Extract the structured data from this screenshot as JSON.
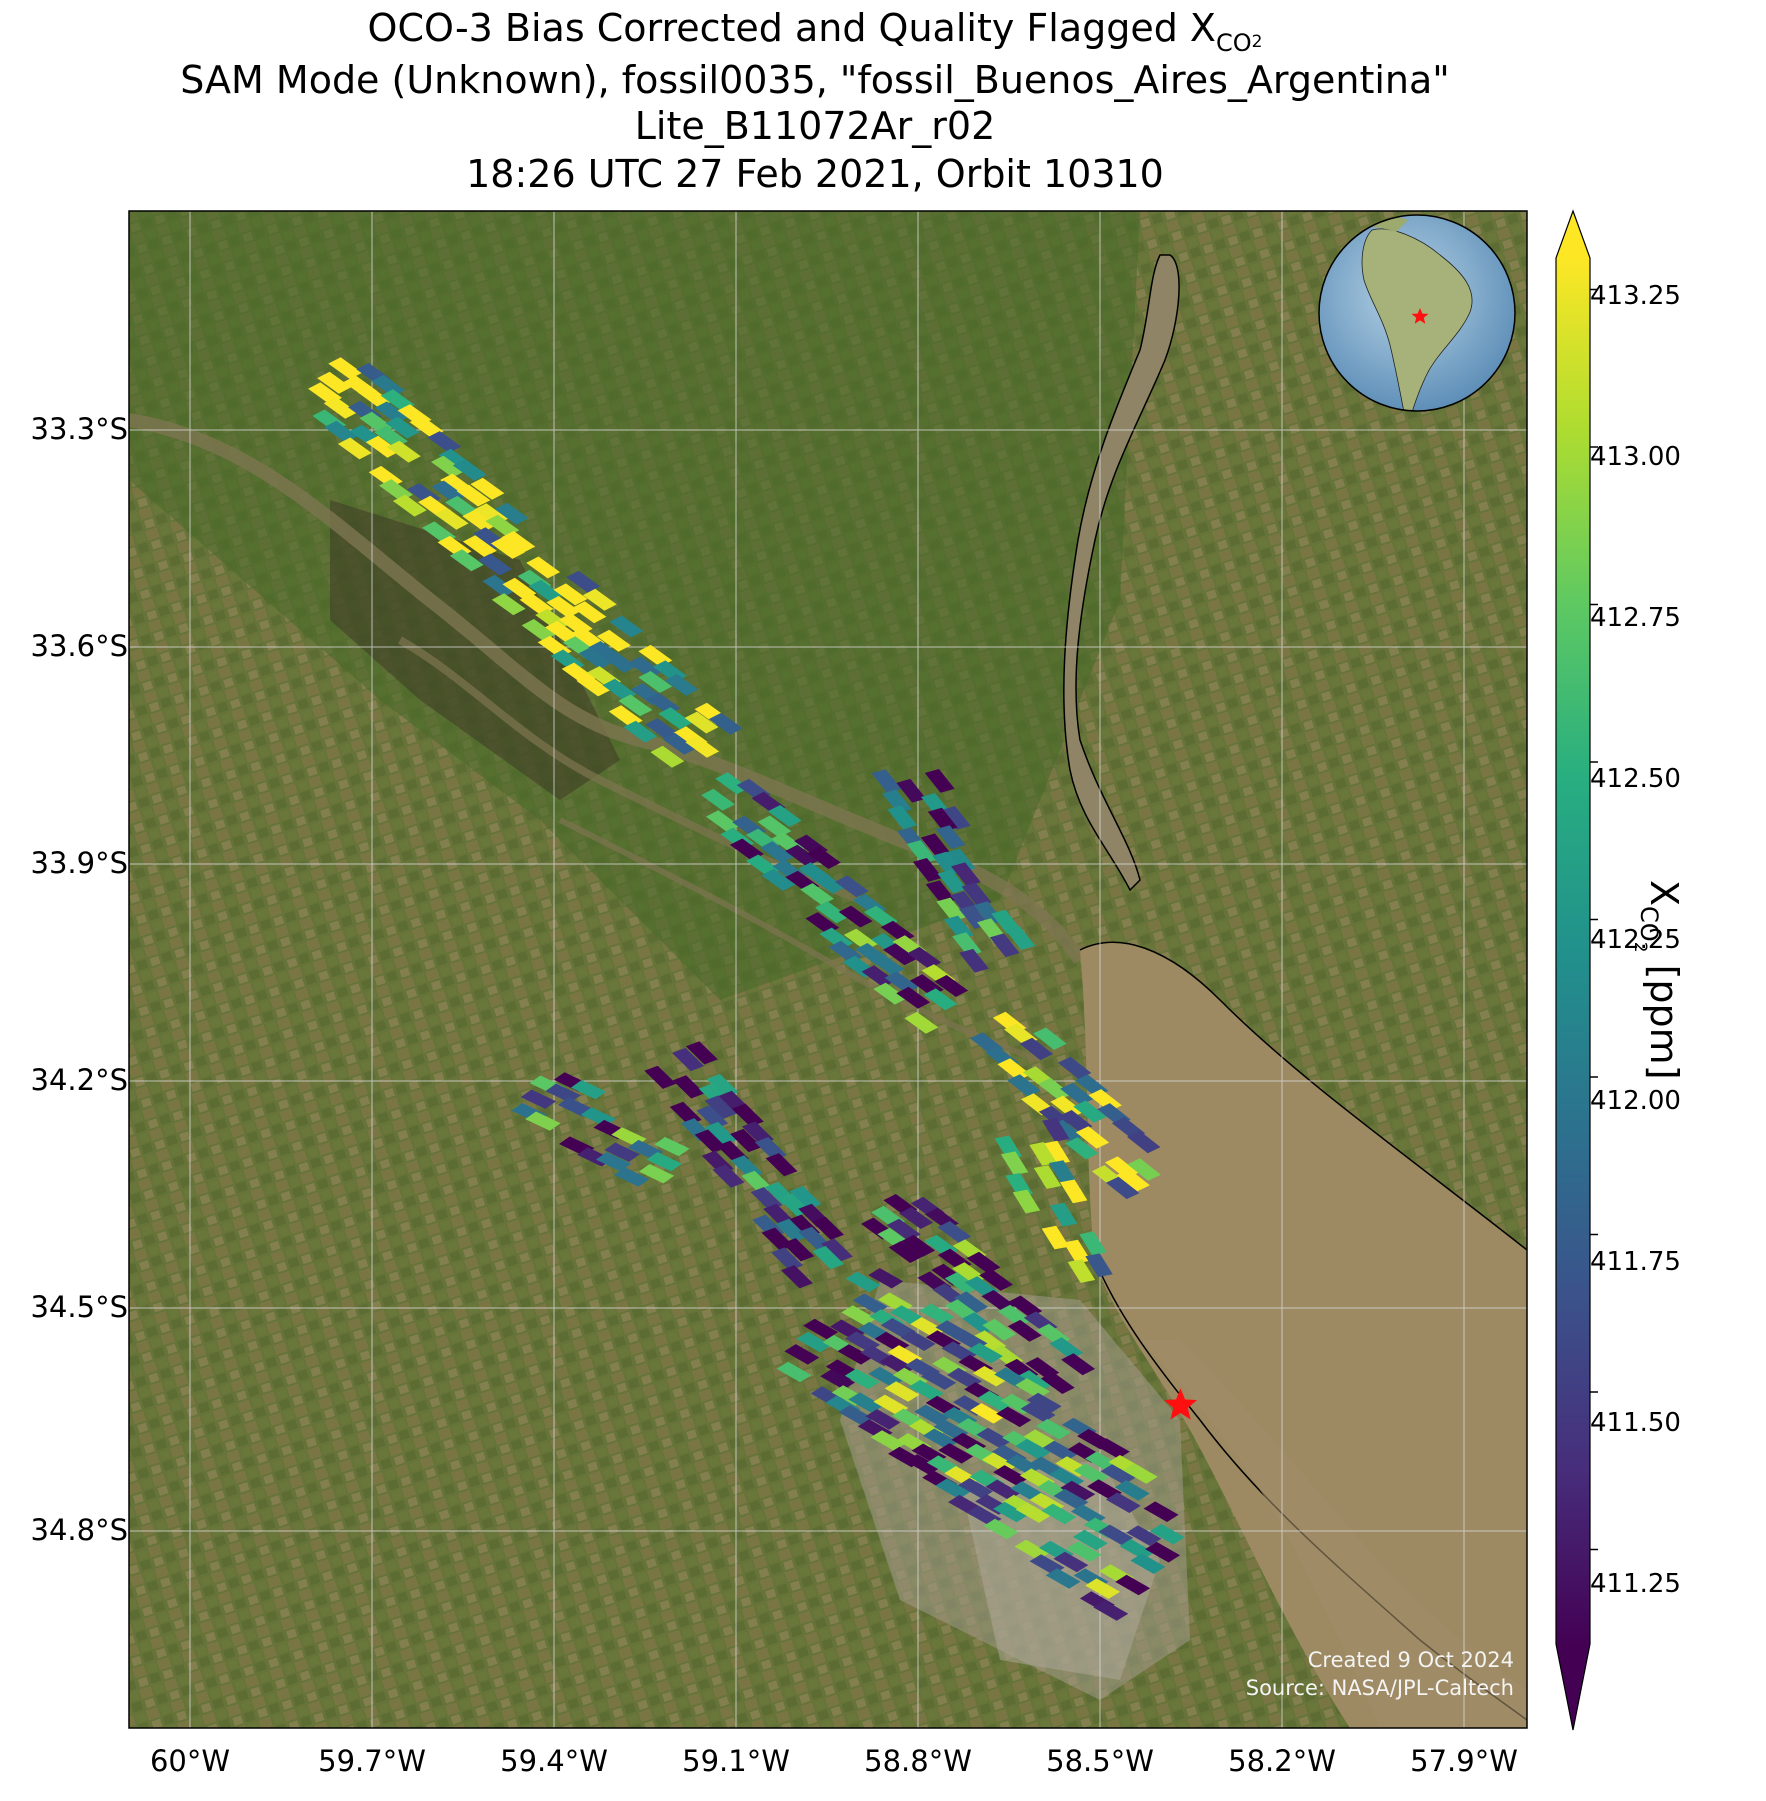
{
  "title": {
    "line1_prefix": "OCO-3 Bias Corrected and Quality Flagged X",
    "line1_sub": "CO",
    "line1_sub2": "2",
    "line2": "SAM Mode (Unknown), fossil0035, \"fossil_Buenos_Aires_Argentina\"",
    "line3": "Lite_B11072Ar_r02",
    "line4": "18:26 UTC 27 Feb 2021, Orbit 10310"
  },
  "map": {
    "lon_range": [
      -60.1,
      -57.8
    ],
    "lat_range": [
      -35.05,
      -32.98
    ],
    "lat_ticks": [
      "33.3°S",
      "33.6°S",
      "33.9°S",
      "34.2°S",
      "34.5°S",
      "34.8°S"
    ],
    "lon_ticks": [
      "60°W",
      "59.7°W",
      "59.4°W",
      "59.1°W",
      "58.8°W",
      "58.5°W",
      "58.2°W",
      "57.9°W"
    ],
    "grid": true,
    "site_marker": {
      "icon": "red-star-icon",
      "lon": -58.37,
      "lat": -34.61,
      "color": "#ff0000"
    },
    "inset": {
      "type": "globe",
      "region": "South America",
      "marker_color": "#ff0000"
    }
  },
  "colorbar": {
    "label_prefix": "X",
    "label_sub": "CO",
    "label_sub2": "2",
    "label_suffix": " [ppm]",
    "min": 411.1,
    "max": 413.3,
    "ticks": [
      "413.25",
      "413.00",
      "412.75",
      "412.50",
      "412.25",
      "412.00",
      "411.75",
      "411.50",
      "411.25"
    ],
    "colormap": "viridis",
    "extend": "both"
  },
  "credits": {
    "created": "Created 9 Oct 2024",
    "source": "Source: NASA/JPL-Caltech"
  },
  "chart_data": {
    "type": "heatmap",
    "variable": "XCO2",
    "units": "ppm",
    "swaths": [
      {
        "lon_start": -59.77,
        "lat_start": -33.22,
        "lon_end": -59.13,
        "lat_end": -33.75,
        "mean_xco2": 412.9
      },
      {
        "lon_start": -59.13,
        "lat_start": -33.78,
        "lon_end": -58.77,
        "lat_end": -34.08,
        "mean_xco2": 411.8
      },
      {
        "lon_start": -58.83,
        "lat_start": -33.75,
        "lon_end": -58.67,
        "lat_end": -34.02,
        "mean_xco2": 411.7
      },
      {
        "lon_start": -58.67,
        "lat_start": -34.1,
        "lon_end": -58.43,
        "lat_end": -34.32,
        "mean_xco2": 412.8
      },
      {
        "lon_start": -58.63,
        "lat_start": -34.25,
        "lon_end": -58.55,
        "lat_end": -34.45,
        "mean_xco2": 412.7
      },
      {
        "lon_start": -59.43,
        "lat_start": -34.19,
        "lon_end": -59.22,
        "lat_end": -34.3,
        "mean_xco2": 411.9
      },
      {
        "lon_start": -59.2,
        "lat_start": -34.15,
        "lon_end": -58.95,
        "lat_end": -34.45,
        "mean_xco2": 411.5
      },
      {
        "lon_start": -58.85,
        "lat_start": -34.35,
        "lon_end": -58.55,
        "lat_end": -34.6,
        "mean_xco2": 411.9
      },
      {
        "lon_start": -58.95,
        "lat_start": -34.5,
        "lon_end": -58.4,
        "lat_end": -34.85,
        "mean_xco2": 412.0
      }
    ]
  }
}
